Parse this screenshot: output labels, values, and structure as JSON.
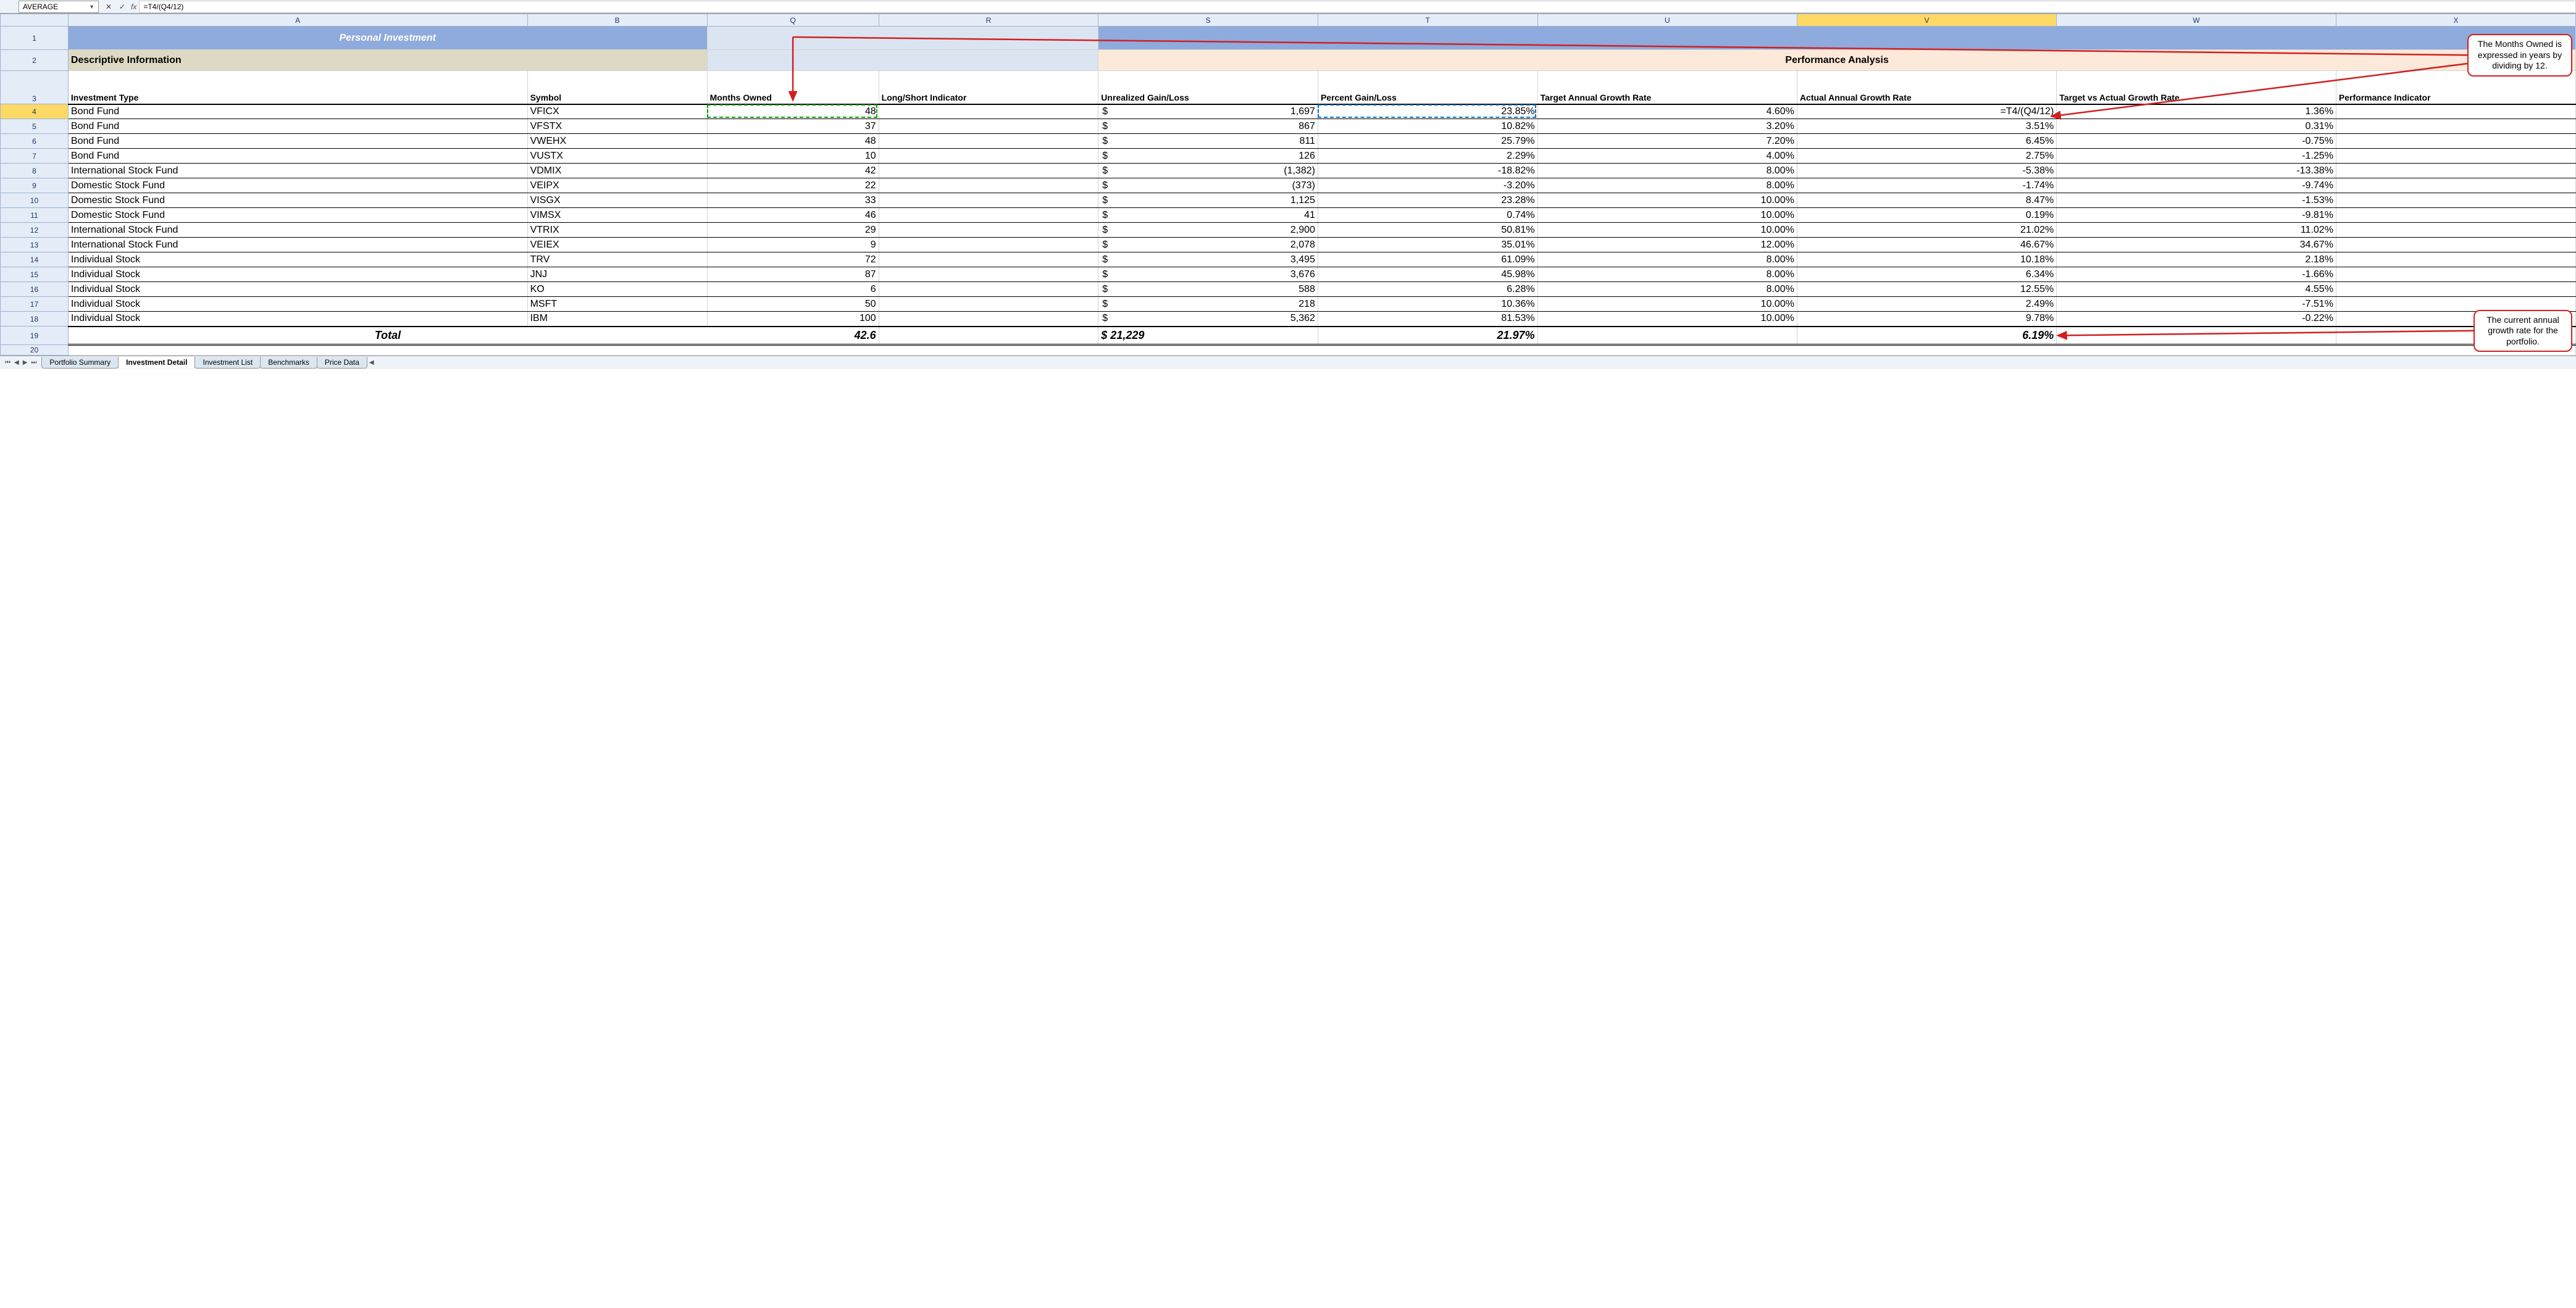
{
  "nameBox": "AVERAGE",
  "formula": "=T4/(Q4/12)",
  "columns": [
    "A",
    "B",
    "Q",
    "R",
    "S",
    "T",
    "U",
    "V",
    "W",
    "X"
  ],
  "activeCol": "V",
  "activeRow": 4,
  "title": "Personal Investment",
  "sectionLeft": "Descriptive Information",
  "sectionRight": "Performance Analysis",
  "headers": {
    "A": "Investment Type",
    "B": "Symbol",
    "Q": "Months Owned",
    "R": "Long/Short Indicator",
    "S": "Unrealized Gain/Loss",
    "T": "Percent Gain/Loss",
    "U": "Target Annual Growth Rate",
    "V": "Actual Annual Growth Rate",
    "W": "Target vs Actual Growth Rate",
    "X": "Performance Indicator"
  },
  "rows": [
    {
      "n": 4,
      "A": "Bond Fund",
      "B": "VFICX",
      "Q": "48",
      "S": "1,697",
      "T": "23.85%",
      "U": "4.60%",
      "V": "=T4/(Q4/12)",
      "W": "1.36%"
    },
    {
      "n": 5,
      "A": "Bond Fund",
      "B": "VFSTX",
      "Q": "37",
      "S": "867",
      "T": "10.82%",
      "U": "3.20%",
      "V": "3.51%",
      "W": "0.31%"
    },
    {
      "n": 6,
      "A": "Bond Fund",
      "B": "VWEHX",
      "Q": "48",
      "S": "811",
      "T": "25.79%",
      "U": "7.20%",
      "V": "6.45%",
      "W": "-0.75%"
    },
    {
      "n": 7,
      "A": "Bond Fund",
      "B": "VUSTX",
      "Q": "10",
      "S": "126",
      "T": "2.29%",
      "U": "4.00%",
      "V": "2.75%",
      "W": "-1.25%"
    },
    {
      "n": 8,
      "A": "International Stock Fund",
      "B": "VDMIX",
      "Q": "42",
      "S": "(1,382)",
      "T": "-18.82%",
      "U": "8.00%",
      "V": "-5.38%",
      "W": "-13.38%"
    },
    {
      "n": 9,
      "A": "Domestic Stock Fund",
      "B": "VEIPX",
      "Q": "22",
      "S": "(373)",
      "T": "-3.20%",
      "U": "8.00%",
      "V": "-1.74%",
      "W": "-9.74%"
    },
    {
      "n": 10,
      "A": "Domestic Stock Fund",
      "B": "VISGX",
      "Q": "33",
      "S": "1,125",
      "T": "23.28%",
      "U": "10.00%",
      "V": "8.47%",
      "W": "-1.53%"
    },
    {
      "n": 11,
      "A": "Domestic Stock Fund",
      "B": "VIMSX",
      "Q": "46",
      "S": "41",
      "T": "0.74%",
      "U": "10.00%",
      "V": "0.19%",
      "W": "-9.81%"
    },
    {
      "n": 12,
      "A": "International Stock Fund",
      "B": "VTRIX",
      "Q": "29",
      "S": "2,900",
      "T": "50.81%",
      "U": "10.00%",
      "V": "21.02%",
      "W": "11.02%"
    },
    {
      "n": 13,
      "A": "International Stock Fund",
      "B": "VEIEX",
      "Q": "9",
      "S": "2,078",
      "T": "35.01%",
      "U": "12.00%",
      "V": "46.67%",
      "W": "34.67%"
    },
    {
      "n": 14,
      "A": "Individual Stock",
      "B": "TRV",
      "Q": "72",
      "S": "3,495",
      "T": "61.09%",
      "U": "8.00%",
      "V": "10.18%",
      "W": "2.18%"
    },
    {
      "n": 15,
      "A": "Individual Stock",
      "B": "JNJ",
      "Q": "87",
      "S": "3,676",
      "T": "45.98%",
      "U": "8.00%",
      "V": "6.34%",
      "W": "-1.66%"
    },
    {
      "n": 16,
      "A": "Individual Stock",
      "B": "KO",
      "Q": "6",
      "S": "588",
      "T": "6.28%",
      "U": "8.00%",
      "V": "12.55%",
      "W": "4.55%"
    },
    {
      "n": 17,
      "A": "Individual Stock",
      "B": "MSFT",
      "Q": "50",
      "S": "218",
      "T": "10.36%",
      "U": "10.00%",
      "V": "2.49%",
      "W": "-7.51%"
    },
    {
      "n": 18,
      "A": "Individual Stock",
      "B": "IBM",
      "Q": "100",
      "S": "5,362",
      "T": "81.53%",
      "U": "10.00%",
      "V": "9.78%",
      "W": "-0.22%"
    }
  ],
  "total": {
    "label": "Total",
    "Q": "42.6",
    "S": "$ 21,229",
    "T": "21.97%",
    "V": "6.19%"
  },
  "tabs": [
    "Portfolio Summary",
    "Investment Detail",
    "Investment List",
    "Benchmarks",
    "Price Data"
  ],
  "activeTab": 1,
  "callout1": "The Months Owned is expressed in years by dividing by 12.",
  "callout2": "The current annual growth rate for the portfolio.",
  "colors": {
    "titleBg": "#8faadc",
    "descBg": "#ddd9c3",
    "perfBg": "#fde9d9",
    "midBg": "#dbe5f1",
    "hdrBg": "#e4ecf7",
    "hdrBorder": "#9db4d1",
    "activeHdr": "#ffd966",
    "calloutBorder": "#d02020",
    "arrow": "#d02020",
    "selGreen": "#00a000",
    "selBlue": "#0070c0"
  }
}
